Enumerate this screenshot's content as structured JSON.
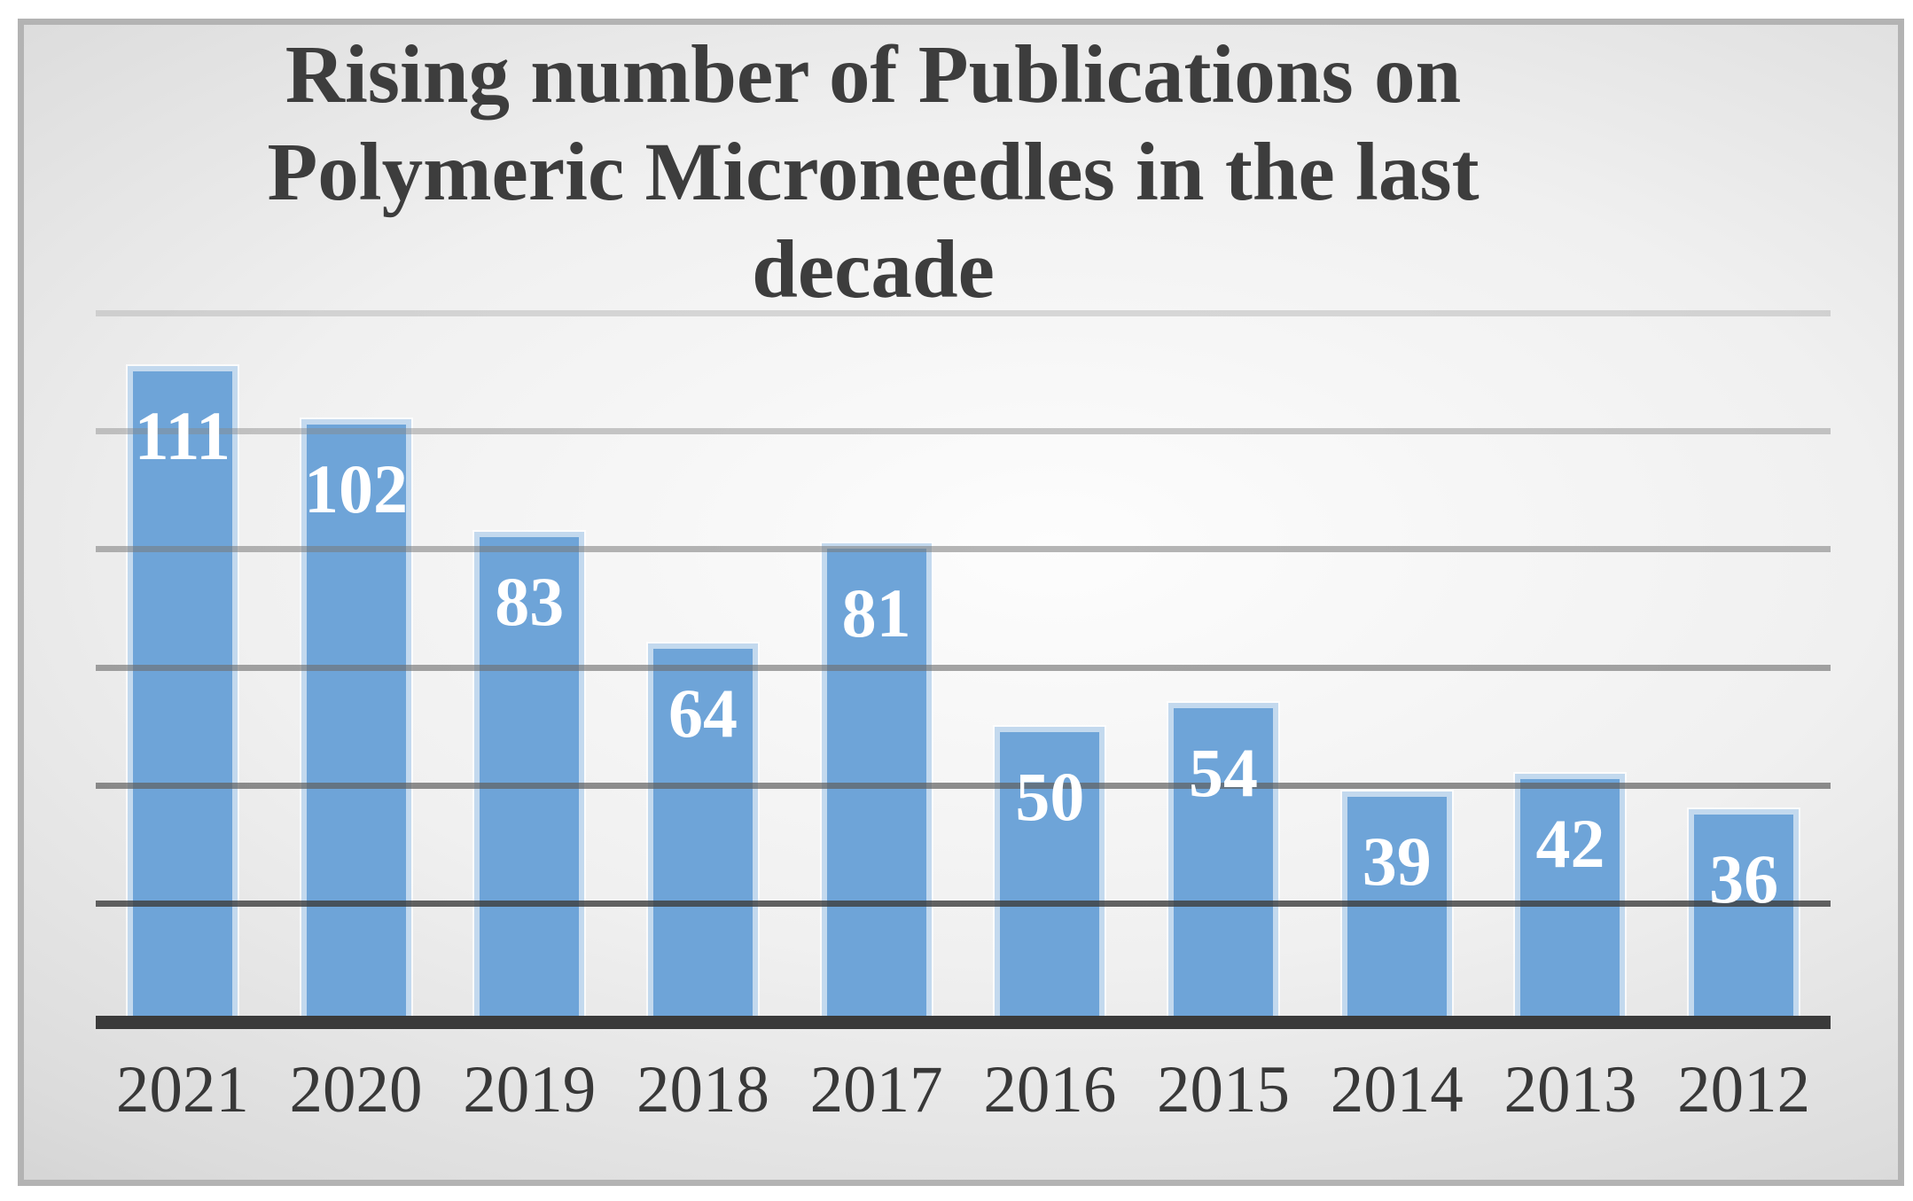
{
  "page": {
    "kind": "presentation-slide-bar-chart"
  },
  "chart_data": {
    "type": "bar",
    "title": "Rising number of Publications on Polymeric Microneedles in the last decade",
    "title_lines": [
      "Rising number of Publications on",
      "Polymeric Microneedles in the last",
      "decade"
    ],
    "categories": [
      "2021",
      "2020",
      "2019",
      "2018",
      "2017",
      "2016",
      "2015",
      "2014",
      "2013",
      "2012"
    ],
    "values": [
      111,
      102,
      83,
      64,
      81,
      50,
      54,
      39,
      42,
      36
    ],
    "series": [
      {
        "name": "Publications",
        "values": [
          111,
          102,
          83,
          64,
          81,
          50,
          54,
          39,
          42,
          36
        ]
      }
    ],
    "xlabel": "",
    "ylabel": "",
    "ylim": [
      0,
      120
    ],
    "y_axis_labels_visible": false,
    "legend": "none",
    "data_labels_position": "inside-end",
    "gridlines": {
      "orientation": "horizontal",
      "interval": 20,
      "values": [
        20,
        40,
        60,
        80,
        100,
        120
      ]
    }
  },
  "colors": {
    "bar_fill": "#6ea4d8",
    "bar_border": "#c3d9ee",
    "bar_halo": "rgba(255,255,255,0.75)",
    "data_label_text": "#ffffff",
    "axis_line": "#3a3a3a",
    "category_text": "#383838",
    "title_text": "#3d3d3d",
    "panel_border": "#b3b3b3",
    "background_center": "#fdfdfd",
    "background_edge": "#c2c2c2",
    "gridline_rgba_bottom_to_top": [
      "rgba(60,60,60,0.80)",
      "rgba(95,95,95,0.70)",
      "rgba(110,110,110,0.62)",
      "rgba(122,122,122,0.55)",
      "rgba(138,138,138,0.46)",
      "rgba(158,158,158,0.36)"
    ]
  }
}
